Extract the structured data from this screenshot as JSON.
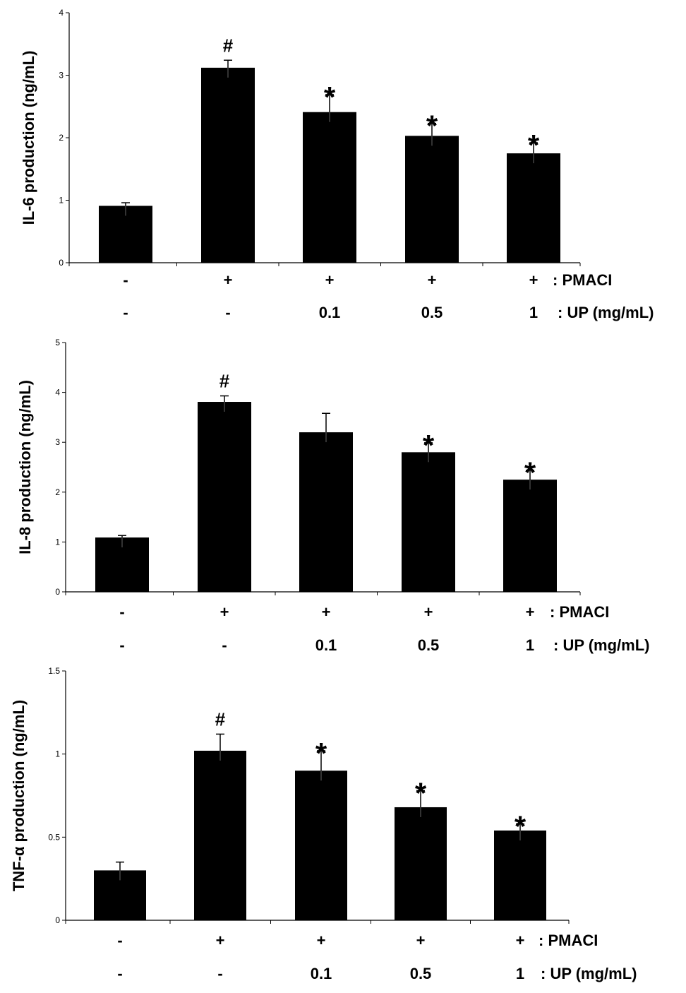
{
  "charts": [
    {
      "ylabel": "IL-6 production  (ng/mL)",
      "yticks": [
        "0",
        "1",
        "2",
        "3",
        "4"
      ],
      "row_pmaci": [
        "-",
        "+",
        "+",
        "+",
        "+"
      ],
      "row_up": [
        "-",
        "-",
        "0.1",
        "0.5",
        "1"
      ],
      "pmaci_label": ": PMACI",
      "up_label": ": UP (mg/mL)"
    },
    {
      "ylabel": "IL-8 production  (ng/mL)",
      "yticks": [
        "0",
        "1",
        "2",
        "3",
        "4",
        "5"
      ],
      "row_pmaci": [
        "-",
        "+",
        "+",
        "+",
        "+"
      ],
      "row_up": [
        "-",
        "-",
        "0.1",
        "0.5",
        "1"
      ],
      "pmaci_label": ": PMACI",
      "up_label": ": UP (mg/mL)"
    },
    {
      "ylabel": "TNF-α production  (ng/mL)",
      "yticks": [
        "0",
        "0.5",
        "1",
        "1.5"
      ],
      "row_pmaci": [
        "-",
        "+",
        "+",
        "+",
        "+"
      ],
      "row_up": [
        "-",
        "-",
        "0.1",
        "0.5",
        "1"
      ],
      "pmaci_label": ": PMACI",
      "up_label": ": UP (mg/mL)"
    }
  ],
  "chart_data": [
    {
      "type": "bar",
      "ylabel": "IL-6 production  (ng/mL)",
      "ylim": [
        0,
        4
      ],
      "yticks": [
        0,
        1,
        2,
        3,
        4
      ],
      "categories": [
        "- / -",
        "+ / -",
        "+ / 0.1",
        "+ / 0.5",
        "+ / 1"
      ],
      "values": [
        0.91,
        3.12,
        2.41,
        2.03,
        1.75
      ],
      "errors": [
        0.05,
        0.12,
        0.28,
        0.2,
        0.17
      ],
      "annotations": [
        "",
        "#",
        "*",
        "*",
        "*"
      ],
      "grid": false,
      "bar_color": "#000000"
    },
    {
      "type": "bar",
      "ylabel": "IL-8 production  (ng/mL)",
      "ylim": [
        0,
        5
      ],
      "yticks": [
        0,
        1,
        2,
        3,
        4,
        5
      ],
      "categories": [
        "- / -",
        "+ / -",
        "+ / 0.1",
        "+ / 0.5",
        "+ / 1"
      ],
      "values": [
        1.09,
        3.81,
        3.2,
        2.8,
        2.25
      ],
      "errors": [
        0.04,
        0.12,
        0.38,
        0.19,
        0.19
      ],
      "annotations": [
        "",
        "#",
        "",
        "*",
        "*"
      ],
      "grid": false,
      "bar_color": "#000000"
    },
    {
      "type": "bar",
      "ylabel": "TNF-α production  (ng/mL)",
      "ylim": [
        0,
        1.5
      ],
      "yticks": [
        0,
        0.5,
        1,
        1.5
      ],
      "categories": [
        "- / -",
        "+ / -",
        "+ / 0.1",
        "+ / 0.5",
        "+ / 1"
      ],
      "values": [
        0.3,
        1.02,
        0.9,
        0.68,
        0.54
      ],
      "errors": [
        0.05,
        0.1,
        0.12,
        0.1,
        0.04
      ],
      "annotations": [
        "",
        "#",
        "*",
        "*",
        "*"
      ],
      "grid": false,
      "bar_color": "#000000"
    }
  ]
}
